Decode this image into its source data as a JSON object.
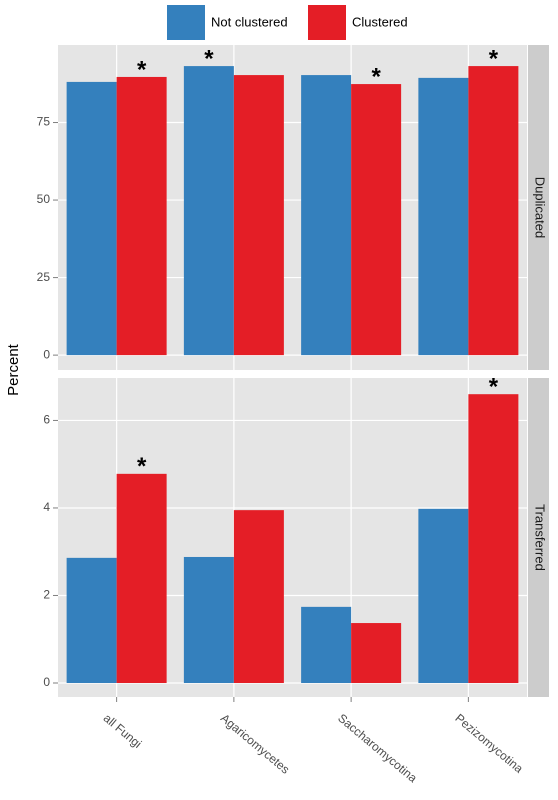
{
  "chart_data": {
    "type": "bar",
    "y_label": "Percent",
    "categories": [
      "all Fungi",
      "Agaricomycetes",
      "Saccharomycotina",
      "Pezizomycotina"
    ],
    "series": [
      {
        "name": "Not clustered",
        "color": "#3480bd"
      },
      {
        "name": "Clustered",
        "color": "#e41e26"
      }
    ],
    "facets": [
      {
        "label": "Duplicated",
        "ylim": [
          -4.8,
          100
        ],
        "yticks": [
          0,
          25,
          50,
          75
        ],
        "values": [
          [
            88.1,
            93.2,
            90.3,
            89.4
          ],
          [
            89.7,
            90.3,
            87.4,
            93.2
          ]
        ],
        "annotations": [
          {
            "text": "*",
            "category": "all Fungi",
            "series": "Clustered"
          },
          {
            "text": "*",
            "category": "Agaricomycetes",
            "series": "Not clustered"
          },
          {
            "text": "*",
            "category": "Saccharomycotina",
            "series": "Clustered"
          },
          {
            "text": "*",
            "category": "Pezizomycotina",
            "series": "Clustered"
          }
        ]
      },
      {
        "label": "Transferred",
        "ylim": [
          -0.32,
          6.97
        ],
        "yticks": [
          0,
          2,
          4,
          6
        ],
        "values": [
          [
            2.86,
            2.88,
            1.74,
            3.98
          ],
          [
            4.78,
            3.95,
            1.37,
            6.6
          ]
        ],
        "annotations": [
          {
            "text": "*",
            "category": "all Fungi",
            "series": "Clustered"
          },
          {
            "text": "*",
            "category": "Pezizomycotina",
            "series": "Clustered"
          }
        ]
      }
    ]
  }
}
